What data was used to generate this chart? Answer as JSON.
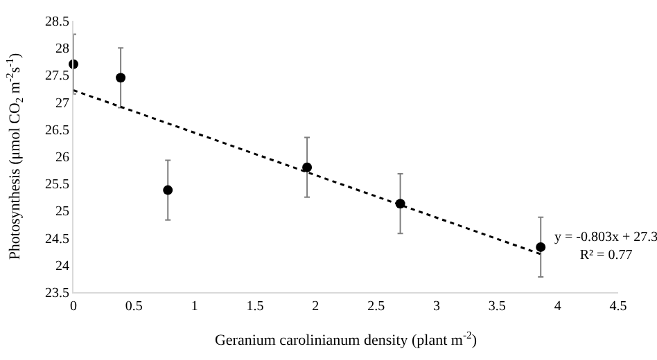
{
  "chart_data": {
    "type": "scatter",
    "xlabel": "Geranium carolinianum density (plant m$^{-2}$)",
    "ylabel": "Photosynthesis (μmol CO$_{2}$ m$^{-2}$s$^{-1}$)",
    "xlim": [
      0,
      4.5
    ],
    "xticks": [
      0,
      0.5,
      1,
      1.5,
      2,
      2.5,
      3,
      3.5,
      4,
      4.5
    ],
    "ylim": [
      23.5,
      28.5
    ],
    "yticks": [
      23.5,
      24,
      24.5,
      25,
      25.5,
      26,
      26.5,
      27,
      27.5,
      28,
      28.5
    ],
    "legend": false,
    "series": [
      {
        "color": "#000000",
        "marker": "circle",
        "x": [
          0,
          0.39,
          0.78,
          1.93,
          2.7,
          3.86
        ],
        "values": [
          27.7,
          27.45,
          25.38,
          25.8,
          25.13,
          24.33
        ],
        "errors": [
          0.55,
          0.55,
          0.55,
          0.55,
          0.55,
          0.55
        ]
      },
      {
        "type": "line",
        "color": "#000000",
        "line_style": "dotted",
        "x": [
          0,
          3.86
        ],
        "values": [
          27.22,
          24.2
        ]
      }
    ],
    "annotations": [
      {
        "text": "y = -0.803x + 27.3\nR² = 0.77",
        "x": 3.95,
        "y": 24.35
      }
    ]
  }
}
